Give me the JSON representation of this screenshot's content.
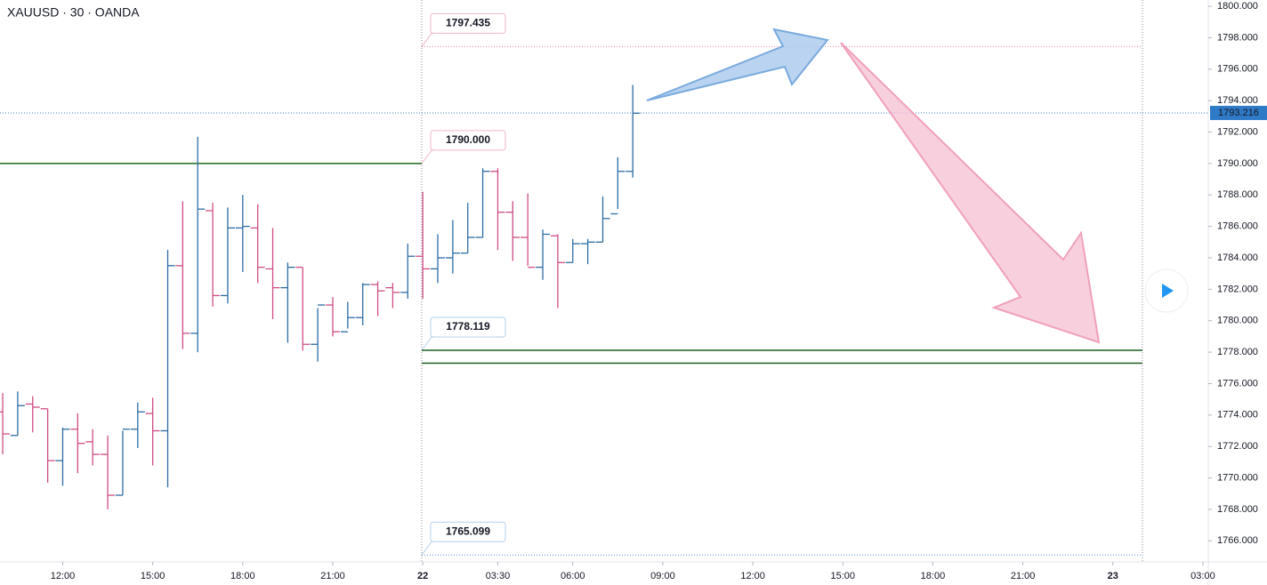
{
  "chart_data": {
    "type": "ohlc",
    "title": "XAUUSD · 30 · OANDA",
    "x": [
      0,
      1,
      2,
      3,
      4,
      5,
      6,
      7,
      8,
      9,
      10,
      11,
      12,
      13,
      14,
      15,
      16,
      17,
      18,
      19,
      20,
      21,
      22,
      23,
      24,
      25,
      26,
      27,
      28,
      29,
      30,
      31,
      32,
      33,
      34,
      35,
      36,
      37,
      38,
      39,
      40,
      41,
      42
    ],
    "open": [
      1774.2,
      1772.7,
      1774.7,
      1774.4,
      1771.1,
      1773.1,
      1772.3,
      1771.5,
      1768.9,
      1773.1,
      1774.1,
      1773.0,
      1783.5,
      1779.2,
      1787.0,
      1781.6,
      1785.9,
      1785.9,
      1783.3,
      1782.1,
      1783.4,
      1778.5,
      1781.0,
      1779.3,
      1780.2,
      1782.3,
      1782.1,
      1781.8,
      1784.1,
      1783.3,
      1784.0,
      1784.3,
      1785.3,
      1789.5,
      1786.9,
      1785.3,
      1783.4,
      1785.4,
      1783.7,
      1784.9,
      1785.0,
      1786.8,
      1789.5
    ],
    "high": [
      1775.4,
      1775.5,
      1775.2,
      1774.4,
      1773.2,
      1774.1,
      1773.1,
      1772.7,
      1773.0,
      1774.8,
      1775.1,
      1784.5,
      1787.6,
      1791.7,
      1787.5,
      1787.2,
      1788.0,
      1787.4,
      1785.9,
      1783.7,
      1783.4,
      1780.8,
      1781.5,
      1781.2,
      1782.4,
      1782.5,
      1782.4,
      1784.9,
      1788.2,
      1785.5,
      1786.4,
      1787.5,
      1789.7,
      1789.7,
      1787.6,
      1788.1,
      1785.8,
      1785.5,
      1785.2,
      1785.2,
      1787.9,
      1790.4,
      1795.0
    ],
    "low": [
      1771.5,
      1772.7,
      1772.9,
      1769.7,
      1769.5,
      1770.3,
      1770.8,
      1768.0,
      1768.9,
      1771.9,
      1770.8,
      1769.4,
      1778.2,
      1778.0,
      1780.9,
      1781.1,
      1783.1,
      1782.4,
      1780.1,
      1778.6,
      1778.1,
      1777.4,
      1779.0,
      1779.5,
      1779.7,
      1780.3,
      1780.8,
      1781.4,
      1781.4,
      1782.4,
      1783.0,
      1784.3,
      1785.3,
      1784.5,
      1783.8,
      1783.5,
      1782.6,
      1780.8,
      1783.7,
      1783.6,
      1785.0,
      1787.1,
      1789.1
    ],
    "close": [
      1772.8,
      1774.6,
      1774.5,
      1771.1,
      1773.1,
      1772.2,
      1771.5,
      1768.9,
      1773.1,
      1774.2,
      1773.0,
      1783.5,
      1779.2,
      1787.1,
      1781.6,
      1785.9,
      1786.0,
      1783.4,
      1782.1,
      1783.4,
      1778.5,
      1781.0,
      1779.3,
      1780.2,
      1782.3,
      1781.9,
      1781.8,
      1784.1,
      1783.3,
      1784.0,
      1784.3,
      1785.3,
      1789.5,
      1786.9,
      1785.3,
      1783.4,
      1785.5,
      1783.7,
      1784.9,
      1785.0,
      1786.5,
      1789.5,
      1793.2
    ],
    "up_color": "#2e6ca4",
    "down_color": "#cf4d84",
    "xlim": [
      -0.18,
      80.36
    ],
    "xticks": [
      {
        "value": 4,
        "label": "12:00"
      },
      {
        "value": 10,
        "label": "15:00"
      },
      {
        "value": 16,
        "label": "18:00"
      },
      {
        "value": 22,
        "label": "21:00"
      },
      {
        "value": 28,
        "label": "22"
      },
      {
        "value": 33,
        "label": "03:30"
      },
      {
        "value": 38,
        "label": "06:00"
      },
      {
        "value": 44,
        "label": "09:00"
      },
      {
        "value": 50,
        "label": "12:00"
      },
      {
        "value": 56,
        "label": "15:00"
      },
      {
        "value": 62,
        "label": "18:00"
      },
      {
        "value": 68,
        "label": "21:00"
      },
      {
        "value": 74,
        "label": "23"
      },
      {
        "value": 80,
        "label": "03:00"
      }
    ],
    "ylim": [
      1764.66,
      1800.4
    ],
    "yticks": [
      {
        "value": 1766,
        "label": "1766.000"
      },
      {
        "value": 1768,
        "label": "1768.000"
      },
      {
        "value": 1770,
        "label": "1770.000"
      },
      {
        "value": 1772,
        "label": "1772.000"
      },
      {
        "value": 1774,
        "label": "1774.000"
      },
      {
        "value": 1776,
        "label": "1776.000"
      },
      {
        "value": 1778,
        "label": "1778.000"
      },
      {
        "value": 1780,
        "label": "1780.000"
      },
      {
        "value": 1782,
        "label": "1782.000"
      },
      {
        "value": 1784,
        "label": "1784.000"
      },
      {
        "value": 1786,
        "label": "1786.000"
      },
      {
        "value": 1788,
        "label": "1788.000"
      },
      {
        "value": 1790,
        "label": "1790.000"
      },
      {
        "value": 1792,
        "label": "1792.000"
      },
      {
        "value": 1794,
        "label": "1794.000"
      },
      {
        "value": 1796,
        "label": "1796.000"
      },
      {
        "value": 1798,
        "label": "1798.000"
      },
      {
        "value": 1800,
        "label": "1800.000"
      }
    ],
    "levels": [
      {
        "value": 1797.435,
        "label": "1797.435",
        "color": "#e57fa6",
        "label_color": "#d02f6c",
        "style": "dotted"
      },
      {
        "value": 1790,
        "label": "1790.000",
        "color": "#1b6b1b",
        "label_color": "#d02f6c",
        "style": "solid"
      },
      {
        "value": 1778.119,
        "label": "1778.119",
        "color": "#1b5e20",
        "label_color": "#2f7ac7",
        "style": "solid"
      },
      {
        "value": 1777.3,
        "color": "#1b5e20",
        "style": "solid"
      },
      {
        "value": 1765.099,
        "label": "1765.099",
        "color": "#4a8ad0",
        "label_color": "#2f7ac7",
        "style": "dotted"
      }
    ],
    "last_price": {
      "value": 1793.216,
      "label": "1793.216",
      "color": "#2f7ac7"
    }
  }
}
